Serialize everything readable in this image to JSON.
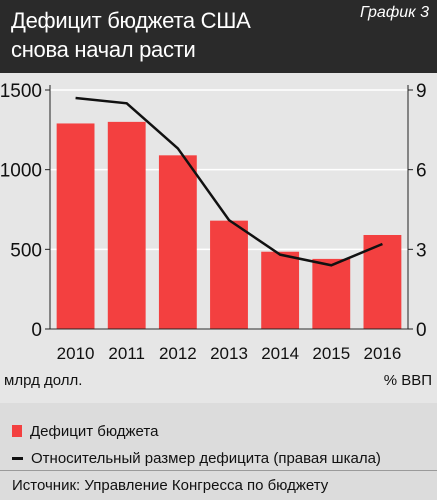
{
  "header": {
    "title_line1": "Дефицит бюджета США",
    "title_line2": "снова начал расти",
    "chart_number": "График 3"
  },
  "legend": {
    "deficit": "Дефицит бюджета",
    "ratio": "Относительный размер дефицита (правая шкала)"
  },
  "source": "Источник: Управление Конгресса по бюджету",
  "colors": {
    "bar": "#f34040",
    "line": "#111111",
    "background": "#e6e6e6"
  },
  "chart_data": {
    "type": "bar",
    "categories": [
      "2010",
      "2011",
      "2012",
      "2013",
      "2014",
      "2015",
      "2016"
    ],
    "series": [
      {
        "name": "Дефицит бюджета",
        "type": "bar",
        "axis": "left",
        "values": [
          1290,
          1300,
          1090,
          680,
          485,
          440,
          590
        ]
      },
      {
        "name": "Относительный размер дефицита (правая шкала)",
        "type": "line",
        "axis": "right",
        "values": [
          8.7,
          8.5,
          6.8,
          4.1,
          2.8,
          2.4,
          3.2
        ]
      }
    ],
    "y_left": {
      "label": "млрд долл.",
      "ylim": [
        0,
        1500
      ],
      "ticks": [
        0,
        500,
        1000,
        1500
      ]
    },
    "y_right": {
      "label": "% ВВП",
      "ylim": [
        0,
        9
      ],
      "ticks": [
        0,
        3,
        6,
        9
      ]
    },
    "grid": true,
    "legend_position": "bottom"
  }
}
